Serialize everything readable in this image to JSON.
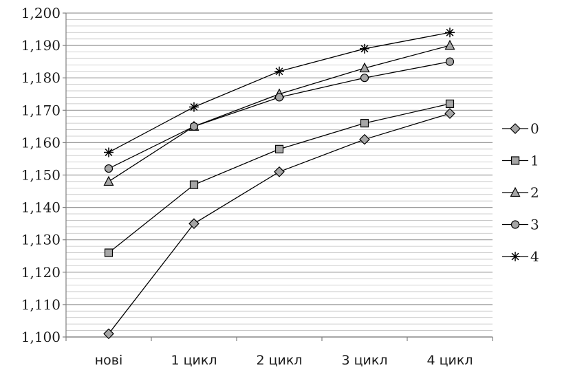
{
  "chart_data": {
    "type": "line",
    "categories": [
      "нові",
      "1 цикл",
      "2 цикл",
      "3 цикл",
      "4 цикл"
    ],
    "ylim": [
      1.1,
      1.2
    ],
    "y_ticks": [
      "1,100",
      "1,110",
      "1,120",
      "1,130",
      "1,140",
      "1,150",
      "1,160",
      "1,170",
      "1,180",
      "1,190",
      "1,200"
    ],
    "grid": true,
    "legend_position": "right",
    "series": [
      {
        "name": "0",
        "marker": "diamond-icon",
        "values": [
          1.101,
          1.135,
          1.151,
          1.161,
          1.169
        ]
      },
      {
        "name": "1",
        "marker": "square-icon",
        "values": [
          1.126,
          1.147,
          1.158,
          1.166,
          1.172
        ]
      },
      {
        "name": "2",
        "marker": "triangle-icon",
        "values": [
          1.148,
          1.165,
          1.175,
          1.183,
          1.19
        ]
      },
      {
        "name": "3",
        "marker": "circle-icon",
        "values": [
          1.152,
          1.165,
          1.174,
          1.18,
          1.185
        ]
      },
      {
        "name": "4",
        "marker": "asterisk-icon",
        "values": [
          1.157,
          1.171,
          1.182,
          1.189,
          1.194
        ]
      }
    ],
    "colors": {
      "line": "#000000",
      "marker_fill": "#a6a6a6",
      "grid": "#bfbfbf",
      "axis": "#808080"
    }
  }
}
